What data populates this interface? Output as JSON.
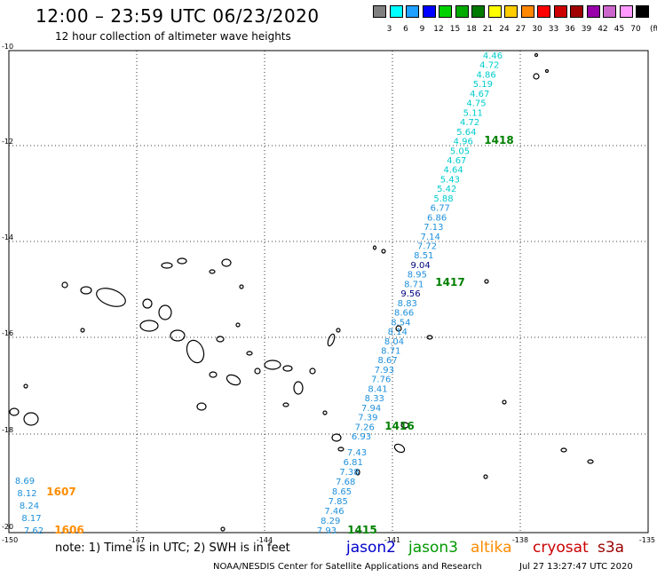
{
  "header": {
    "title": "12:00 – 23:59 UTC 06/23/2020",
    "subtitle": "12 hour collection of altimeter wave heights"
  },
  "color_scale": {
    "unit": "(ft)",
    "labels": [
      "3",
      "6",
      "9",
      "12",
      "15",
      "18",
      "21",
      "24",
      "27",
      "30",
      "33",
      "36",
      "39",
      "42",
      "45",
      "70"
    ],
    "colors": [
      "#808080",
      "#00ffff",
      "#1ea0ff",
      "#0000ff",
      "#00d200",
      "#00aa00",
      "#007a00",
      "#ffff00",
      "#ffcc00",
      "#ff8800",
      "#ff0000",
      "#cc0000",
      "#a00000",
      "#9900aa",
      "#cc66cc",
      "#ff99ff",
      "#000000"
    ]
  },
  "axes": {
    "lat_labels": [
      "-10",
      "-12",
      "-14",
      "-16",
      "-18",
      "-20"
    ],
    "lon_labels": [
      "-150",
      "-147",
      "-144",
      "-141",
      "-138",
      "-135"
    ]
  },
  "measurements": {
    "track_a": [
      "4.46",
      "4.72",
      "4.86",
      "5.19",
      "4.67",
      "4.75",
      "5.11",
      "4.72",
      "5.64",
      "4.96",
      "5.05",
      "4.67",
      "4.64",
      "5.43",
      "5.42",
      "5.88",
      "6.77",
      "6.86",
      "7.13",
      "7.14",
      "7.72",
      "8.51",
      "9.04",
      "8.95",
      "8.71",
      "9.56",
      "8.83",
      "8.66",
      "8.54",
      "8.14",
      "8.04",
      "8.71",
      "8.67",
      "7.93",
      "7.76",
      "8.41",
      "8.33",
      "7.94",
      "7.39",
      "7.26",
      "6.93"
    ],
    "track_b": [
      "7.43",
      "6.81",
      "7.38",
      "7.68",
      "8.65",
      "7.85",
      "7.46",
      "8.29",
      "7.93"
    ],
    "track_c": [
      "8.69",
      "8.12",
      "8.24",
      "8.17",
      "7.62"
    ]
  },
  "pass_times": [
    "1418",
    "1417",
    "1416",
    "1415",
    "1607",
    "1606"
  ],
  "colors": {
    "measure_cyan": "#00cccc",
    "measure_blue": "#1e90dc",
    "measure_dark": "#000080",
    "pass_green": "#008000",
    "pass_orange": "#ff8c00"
  },
  "footer": {
    "note": "note:  1) Time is in UTC;  2) SWH is in feet",
    "satellites": [
      {
        "name": "jason2",
        "color": "#0000cc"
      },
      {
        "name": "jason3",
        "color": "#009900"
      },
      {
        "name": "altika",
        "color": "#ff8c00"
      },
      {
        "name": "cryosat",
        "color": "#cc0000"
      },
      {
        "name": "s3a",
        "color": "#990000"
      }
    ],
    "credit": "NOAA/NESDIS Center for Satellite Applications and Research",
    "timestamp": "Jul 27 13:27:47 UTC 2020"
  }
}
